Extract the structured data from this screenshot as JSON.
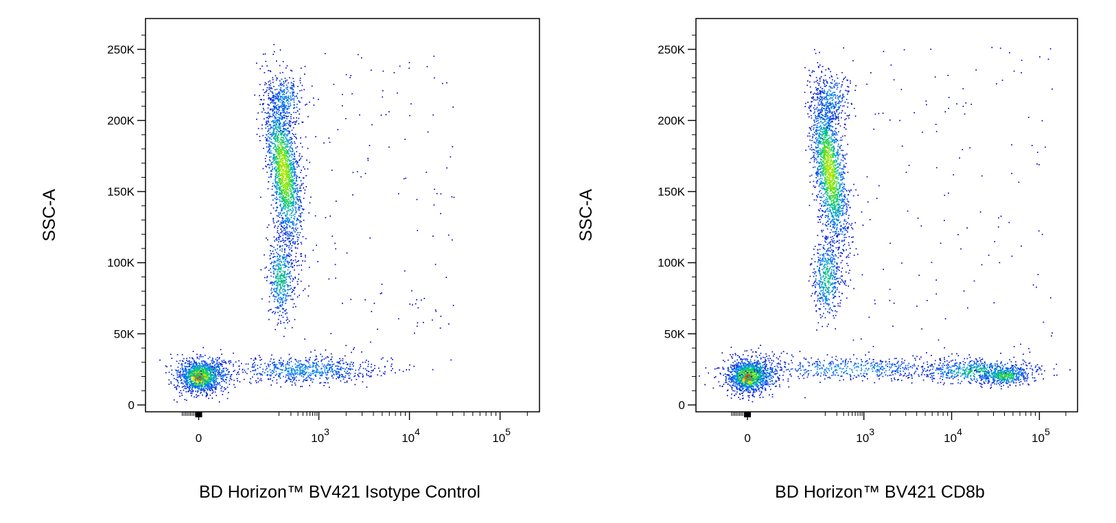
{
  "chart_data": [
    {
      "type": "scatter",
      "ylabel": "SSC-A",
      "xlabel": "BD Horizon™ BV421 Isotype Control",
      "x_scale": "biexponential",
      "ylim": [
        0,
        262144
      ],
      "y_ticks": [
        "0",
        "50K",
        "100K",
        "150K",
        "200K",
        "250K"
      ],
      "y_tick_values": [
        0,
        50000,
        100000,
        150000,
        200000,
        250000
      ],
      "x_ticks": [
        {
          "base": "0",
          "exp": ""
        },
        {
          "base": "10",
          "exp": "3"
        },
        {
          "base": "10",
          "exp": "4"
        },
        {
          "base": "10",
          "exp": "5"
        }
      ],
      "x_tick_values": [
        0,
        1000,
        10000,
        100000
      ],
      "populations": [
        {
          "name_hint": "low-SSC cluster",
          "x": 0,
          "y": 20000,
          "density": "very high"
        },
        {
          "name_hint": "high-SSC column",
          "x": 150,
          "y": 165000,
          "density": "high"
        },
        {
          "name_hint": "low-SSC tail",
          "x": 400,
          "y": 25000,
          "density": "medium"
        }
      ],
      "grid": false,
      "color_scale": "pseudocolor density (blue→green→yellow→red)"
    },
    {
      "type": "scatter",
      "ylabel": "SSC-A",
      "xlabel": "BD Horizon™ BV421 CD8b",
      "x_scale": "biexponential",
      "ylim": [
        0,
        262144
      ],
      "y_ticks": [
        "0",
        "50K",
        "100K",
        "150K",
        "200K",
        "250K"
      ],
      "y_tick_values": [
        0,
        50000,
        100000,
        150000,
        200000,
        250000
      ],
      "x_ticks": [
        {
          "base": "0",
          "exp": ""
        },
        {
          "base": "10",
          "exp": "3"
        },
        {
          "base": "10",
          "exp": "4"
        },
        {
          "base": "10",
          "exp": "5"
        }
      ],
      "x_tick_values": [
        0,
        1000,
        10000,
        100000
      ],
      "populations": [
        {
          "name_hint": "low-SSC cluster",
          "x": 0,
          "y": 20000,
          "density": "very high"
        },
        {
          "name_hint": "high-SSC column",
          "x": 150,
          "y": 165000,
          "density": "high"
        },
        {
          "name_hint": "CD8b positive",
          "x": 30000,
          "y": 22000,
          "density": "medium"
        }
      ],
      "grid": false,
      "color_scale": "pseudocolor density (blue→green→yellow→red)"
    }
  ]
}
